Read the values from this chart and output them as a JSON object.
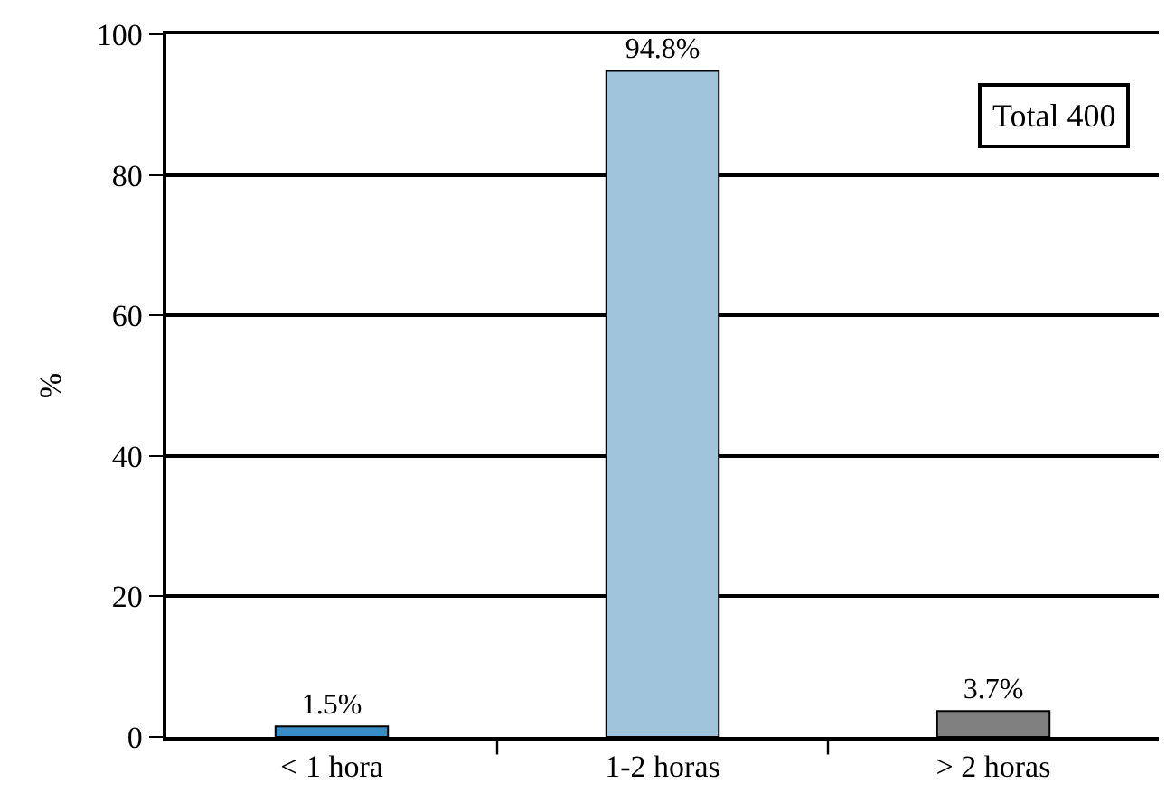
{
  "chart_data": {
    "type": "bar",
    "ylabel": "%",
    "categories": [
      "< 1 hora",
      "1-2 horas",
      "> 2 horas"
    ],
    "values": [
      1.5,
      94.8,
      3.7
    ],
    "colors": [
      "#3a8cc4",
      "#a0c4dc",
      "#808080"
    ],
    "value_labels": [
      "1.5%",
      "94.8%",
      "3.7%"
    ],
    "annotations": [
      "Total 400"
    ],
    "ylim": [
      0,
      100
    ],
    "yticks": [
      0,
      20,
      40,
      60,
      80,
      100
    ],
    "grid": "y"
  }
}
